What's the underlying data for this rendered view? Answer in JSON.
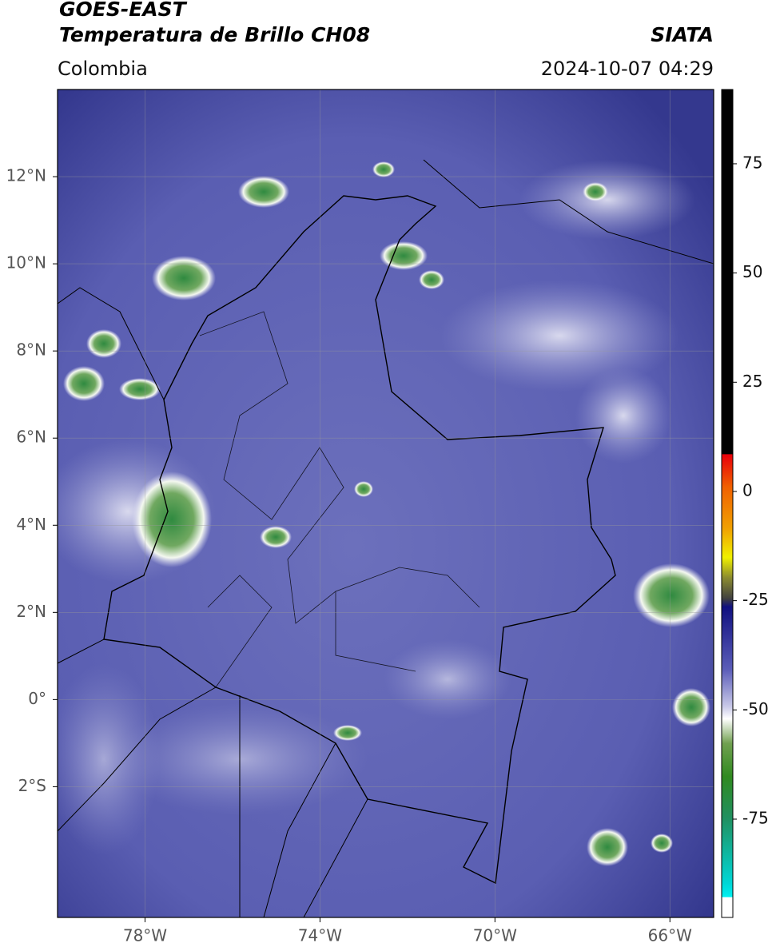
{
  "header": {
    "satellite": "GOES-EAST",
    "title": "Temperatura de Brillo CH08",
    "source": "SIATA",
    "region": "Colombia",
    "datetime": "2024-10-07 04:29"
  },
  "map": {
    "xlim": [
      -80,
      -65
    ],
    "ylim": [
      -5,
      14
    ],
    "xticks": [
      {
        "value": -78,
        "label": "78°W"
      },
      {
        "value": -74,
        "label": "74°W"
      },
      {
        "value": -70,
        "label": "70°W"
      },
      {
        "value": -66,
        "label": "66°W"
      }
    ],
    "yticks": [
      {
        "value": 12,
        "label": "12°N"
      },
      {
        "value": 10,
        "label": "10°N"
      },
      {
        "value": 8,
        "label": "8°N"
      },
      {
        "value": 6,
        "label": "6°N"
      },
      {
        "value": 4,
        "label": "4°N"
      },
      {
        "value": 2,
        "label": "2°N"
      },
      {
        "value": 0,
        "label": "0°"
      },
      {
        "value": -2,
        "label": "2°S"
      }
    ]
  },
  "colorbar": {
    "lim": [
      -97.5,
      92
    ],
    "ticks": [
      75,
      50,
      25,
      0,
      -25,
      -50,
      -75
    ]
  }
}
